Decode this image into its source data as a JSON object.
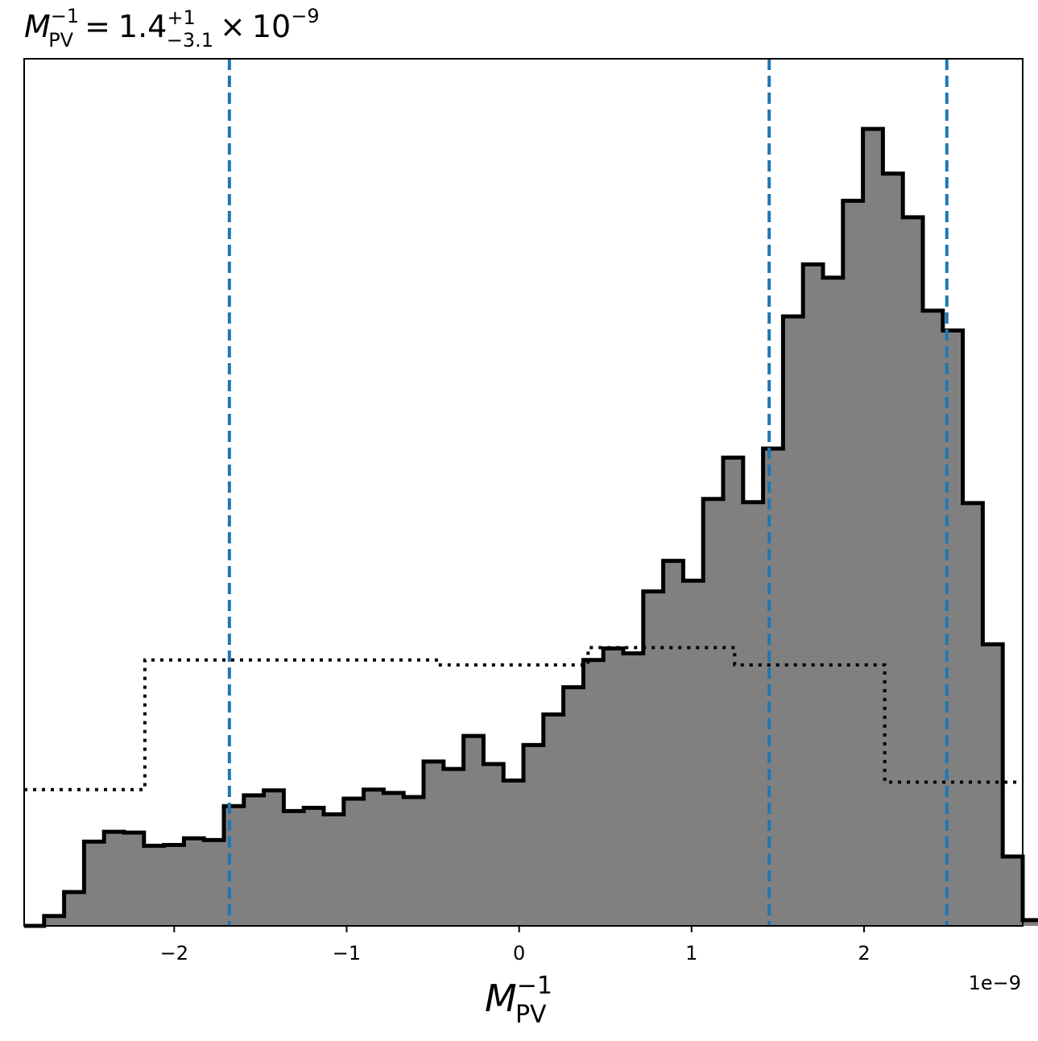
{
  "chart_data": {
    "type": "histogram",
    "title": {
      "symbol": "M",
      "symbol_sub": "PV",
      "symbol_sup": "−1",
      "equals": "=",
      "value": "1.4",
      "err_plus": "+1",
      "err_minus": "−3.1",
      "times": "×",
      "base": "10",
      "exponent": "−9"
    },
    "xlabel": {
      "symbol": "M",
      "sub": "PV",
      "sup": "−1"
    },
    "x_offset_label": "1e−9",
    "xlim": [
      -2.87,
      2.92
    ],
    "ylim": [
      0,
      1.0
    ],
    "xticks": [
      {
        "value": -2,
        "label": "−2"
      },
      {
        "value": -1,
        "label": "−1"
      },
      {
        "value": 0,
        "label": "0"
      },
      {
        "value": 1,
        "label": "1"
      },
      {
        "value": 2,
        "label": "2"
      }
    ],
    "posterior_histogram": {
      "fill": "#808080",
      "edge": "#000000",
      "bin_start": -2.87,
      "bin_width": 0.1158,
      "heights": [
        0.0,
        0.012,
        0.041,
        0.102,
        0.114,
        0.113,
        0.097,
        0.098,
        0.106,
        0.104,
        0.145,
        0.158,
        0.164,
        0.139,
        0.143,
        0.135,
        0.154,
        0.165,
        0.161,
        0.156,
        0.199,
        0.19,
        0.23,
        0.196,
        0.176,
        0.219,
        0.256,
        0.289,
        0.322,
        0.336,
        0.33,
        0.405,
        0.442,
        0.418,
        0.517,
        0.567,
        0.513,
        0.578,
        0.738,
        0.801,
        0.785,
        0.878,
        0.965,
        0.911,
        0.858,
        0.745,
        0.721,
        0.512,
        0.341,
        0.084,
        0.007
      ]
    },
    "prior_histogram": {
      "style": "dotted",
      "color": "#000000",
      "edges": [
        -2.87,
        -2.17,
        -0.48,
        0.4,
        1.25,
        2.12,
        2.92
      ],
      "heights": [
        0.165,
        0.322,
        0.316,
        0.337,
        0.316,
        0.174
      ]
    },
    "credible_interval_lines": {
      "color": "#1f77b4",
      "style": "dashed",
      "values": [
        -1.68,
        1.45,
        2.48
      ]
    }
  }
}
